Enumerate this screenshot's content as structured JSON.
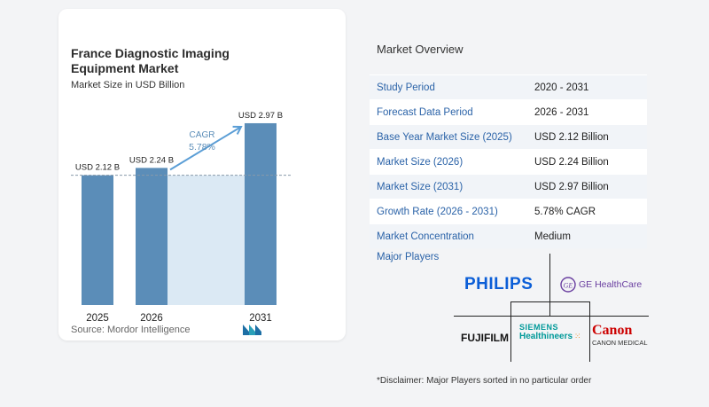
{
  "chart": {
    "title": "France Diagnostic Imaging Equipment Market",
    "subtitle": "Market Size in USD Billion",
    "source": "Source:  Mordor Intelligence",
    "cagr_label": "CAGR",
    "cagr_value": "5.78%"
  },
  "chart_data": {
    "type": "bar",
    "categories": [
      "2025",
      "2026",
      "2031"
    ],
    "values": [
      2.12,
      2.24,
      2.97
    ],
    "data_labels": [
      "USD 2.12 B",
      "USD 2.24 B",
      "USD 2.97 B"
    ],
    "title": "France Diagnostic Imaging Equipment Market",
    "subtitle": "Market Size in USD Billion",
    "xlabel": "",
    "ylabel": "",
    "ylim": [
      0,
      3.1
    ],
    "grid": false
  },
  "colors": {
    "bar": "#5b8db8",
    "bar_light": "#dbe9f4",
    "arrow": "#5b9ed6",
    "key_text": "#2b63a8",
    "philips": "#0b5ed7",
    "ge": "#6a3fa0",
    "siemens": "#009999",
    "canon": "#cc0000"
  },
  "overview": {
    "title": "Market Overview",
    "rows": [
      {
        "key": "Study Period",
        "value": "2020 - 2031"
      },
      {
        "key": "Forecast Data Period",
        "value": "2026 - 2031"
      },
      {
        "key": "Base Year Market Size (2025)",
        "value": "USD 2.12 Billion"
      },
      {
        "key": "Market Size (2026)",
        "value": "USD 2.24 Billion"
      },
      {
        "key": "Market Size (2031)",
        "value": "USD 2.97 Billion"
      },
      {
        "key": "Growth Rate (2026 - 2031)",
        "value": "5.78% CAGR"
      },
      {
        "key": "Market Concentration",
        "value": "Medium"
      }
    ]
  },
  "players": {
    "title": "Major Players",
    "philips": "PHILIPS",
    "ge": "GE HealthCare",
    "fujifilm": "FUJIFILM",
    "siemens_line1": "SIEMENS",
    "siemens_line2": "Healthineers",
    "canon": "Canon",
    "canon_sub": "CANON MEDICAL"
  },
  "disclaimer": "*Disclaimer: Major Players sorted in no particular order"
}
